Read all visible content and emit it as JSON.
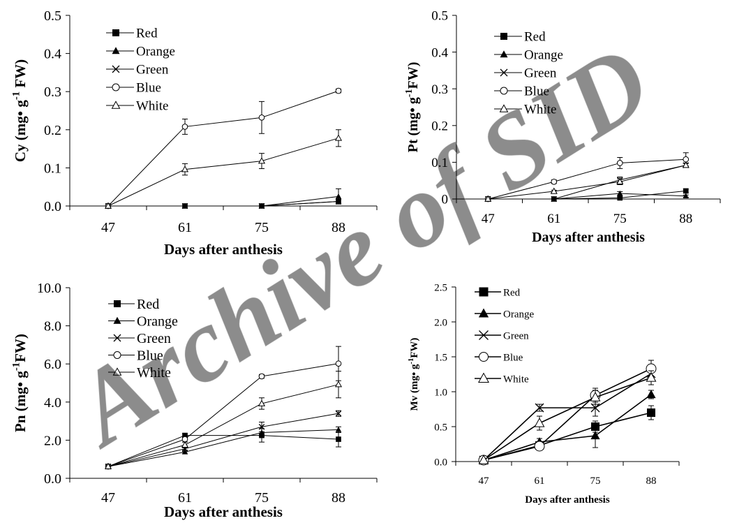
{
  "watermark": "Archive of SID",
  "chart_data": [
    {
      "id": "cy",
      "type": "line",
      "ylabel": "Cy (mg• g",
      "ylabel_sup": "-1",
      "ylabel_tail": " FW)",
      "xlabel": "Days after anthesis",
      "categories": [
        "47",
        "61",
        "75",
        "88"
      ],
      "ylim": [
        0,
        0.5
      ],
      "yticks": [
        "0.0",
        "0.1",
        "0.2",
        "0.3",
        "0.4",
        "0.5"
      ],
      "legend": "top-left",
      "series": [
        {
          "name": "Red",
          "marker": "square",
          "values": [
            0,
            0,
            0,
            0.012
          ],
          "errors": [
            0,
            0,
            0,
            0.005
          ]
        },
        {
          "name": "Orange",
          "marker": "triangle-filled",
          "values": [
            0,
            0,
            0,
            0.025
          ],
          "errors": [
            0,
            0,
            0,
            0.02
          ]
        },
        {
          "name": "Green",
          "marker": "x",
          "values": [
            0,
            0,
            0,
            0.012
          ],
          "errors": [
            0,
            0,
            0,
            0.005
          ]
        },
        {
          "name": "Blue",
          "marker": "circle-open",
          "values": [
            0,
            0.208,
            0.232,
            0.302
          ],
          "errors": [
            0,
            0.02,
            0.042,
            0.005
          ]
        },
        {
          "name": "White",
          "marker": "triangle-open",
          "values": [
            0,
            0.096,
            0.118,
            0.178
          ],
          "errors": [
            0,
            0.015,
            0.02,
            0.022
          ]
        }
      ]
    },
    {
      "id": "pt",
      "type": "line",
      "ylabel": "Pt (mg• g",
      "ylabel_sup": "-1",
      "ylabel_tail": "FW)",
      "xlabel": "Days after anthesis",
      "categories": [
        "47",
        "61",
        "75",
        "88"
      ],
      "ylim": [
        0,
        0.5
      ],
      "yticks": [
        "0",
        "0.1",
        "0.2",
        "0.3",
        "0.4",
        "0.5"
      ],
      "legend": "top-left",
      "series": [
        {
          "name": "Red",
          "marker": "square",
          "values": [
            0,
            0,
            0.003,
            0.022
          ],
          "errors": [
            0,
            0,
            0.003,
            0.005
          ]
        },
        {
          "name": "Orange",
          "marker": "triangle-filled",
          "values": [
            0,
            0,
            0.015,
            0.008
          ],
          "errors": [
            0,
            0,
            0.005,
            0.003
          ]
        },
        {
          "name": "Green",
          "marker": "x",
          "values": [
            0,
            0,
            0.052,
            0.092
          ],
          "errors": [
            0,
            0,
            0.008,
            0.005
          ]
        },
        {
          "name": "Blue",
          "marker": "circle-open",
          "values": [
            0,
            0.047,
            0.098,
            0.108
          ],
          "errors": [
            0,
            0.005,
            0.015,
            0.018
          ]
        },
        {
          "name": "White",
          "marker": "triangle-open",
          "values": [
            0,
            0.021,
            0.047,
            0.092
          ],
          "errors": [
            0,
            0.003,
            0.008,
            0.006
          ]
        }
      ]
    },
    {
      "id": "pn",
      "type": "line",
      "ylabel": "Pn (mg• g",
      "ylabel_sup": "-1",
      "ylabel_tail": "FW)",
      "xlabel": "Days after anthesis",
      "categories": [
        "47",
        "61",
        "75",
        "88"
      ],
      "ylim": [
        0,
        10
      ],
      "yticks": [
        "0.0",
        "2.0",
        "4.0",
        "6.0",
        "8.0",
        "10.0"
      ],
      "legend": "top-left",
      "series": [
        {
          "name": "Red",
          "marker": "square",
          "values": [
            0.62,
            2.25,
            2.25,
            2.05
          ],
          "errors": [
            0.05,
            0.1,
            0.35,
            0.4
          ]
        },
        {
          "name": "Orange",
          "marker": "triangle-filled",
          "values": [
            0.62,
            1.38,
            2.4,
            2.55
          ],
          "errors": [
            0.05,
            0.1,
            0.2,
            0.15
          ]
        },
        {
          "name": "Green",
          "marker": "x",
          "values": [
            0.62,
            1.55,
            2.7,
            3.4
          ],
          "errors": [
            0.05,
            0.15,
            0.25,
            0.15
          ]
        },
        {
          "name": "Blue",
          "marker": "circle-open",
          "values": [
            0.62,
            2.05,
            5.35,
            6.02
          ],
          "errors": [
            0.05,
            0.15,
            0.1,
            0.9
          ]
        },
        {
          "name": "White",
          "marker": "triangle-open",
          "values": [
            0.62,
            1.75,
            3.92,
            4.92
          ],
          "errors": [
            0.05,
            0.15,
            0.3,
            0.7
          ]
        }
      ]
    },
    {
      "id": "mv",
      "type": "line",
      "ylabel": "Mv (mg• g",
      "ylabel_sup": "-1",
      "ylabel_tail": "FW)",
      "xlabel": "Days after anthesis",
      "categories": [
        "47",
        "61",
        "75",
        "88"
      ],
      "ylim": [
        0,
        2.5
      ],
      "yticks": [
        "0.0",
        "0.5",
        "1.0",
        "1.5",
        "2.0",
        "2.5"
      ],
      "legend": "top-left",
      "series": [
        {
          "name": "Red",
          "marker": "square",
          "values": [
            0.02,
            0.23,
            0.5,
            0.7
          ],
          "errors": [
            0.01,
            0.05,
            0.08,
            0.1
          ]
        },
        {
          "name": "Orange",
          "marker": "triangle-filled",
          "values": [
            0.02,
            0.28,
            0.37,
            0.96
          ],
          "errors": [
            0.01,
            0.05,
            0.17,
            0.06
          ]
        },
        {
          "name": "Green",
          "marker": "x",
          "values": [
            0.02,
            0.77,
            0.77,
            1.26
          ],
          "errors": [
            0.01,
            0.05,
            0.12,
            0.1
          ]
        },
        {
          "name": "Blue",
          "marker": "circle-open",
          "values": [
            0.02,
            0.22,
            0.95,
            1.33
          ],
          "errors": [
            0.01,
            0.05,
            0.1,
            0.12
          ]
        },
        {
          "name": "White",
          "marker": "triangle-open",
          "values": [
            0.02,
            0.55,
            0.92,
            1.2
          ],
          "errors": [
            0.01,
            0.1,
            0.1,
            0.1
          ]
        }
      ]
    }
  ]
}
